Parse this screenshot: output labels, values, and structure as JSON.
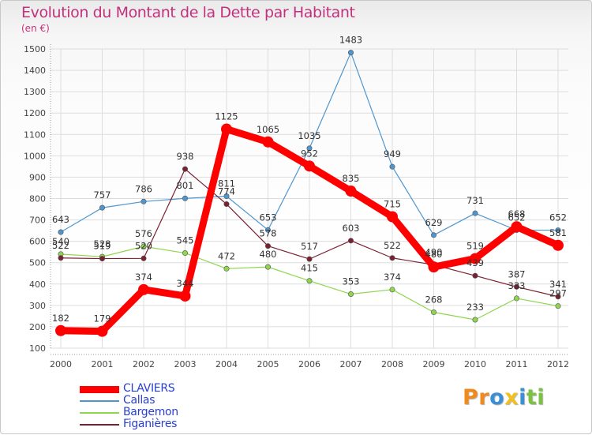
{
  "title": "Evolution du Montant de la Dette par Habitant",
  "unit": "(en €)",
  "chart_data": {
    "type": "line",
    "title": "Evolution du Montant de la Dette par Habitant",
    "ylabel": "(en €)",
    "xlabel": "",
    "x": [
      "2000",
      "2001",
      "2002",
      "2003",
      "2004",
      "2005",
      "2006",
      "2007",
      "2008",
      "2009",
      "2010",
      "2011",
      "2012"
    ],
    "y_ticks": [
      "100",
      "200",
      "300",
      "400",
      "500",
      "600",
      "700",
      "800",
      "900",
      "1000",
      "1100",
      "1200",
      "1300",
      "1400",
      "1500"
    ],
    "ylim": [
      100,
      1500
    ],
    "grid": true,
    "legend_position": "bottom-left",
    "series": [
      {
        "name": "CLAVIERS",
        "color": "#ff0000",
        "values": [
          182,
          179,
          374,
          344,
          1125,
          1065,
          952,
          835,
          715,
          480,
          519,
          668,
          581
        ]
      },
      {
        "name": "Callas",
        "color": "#4f96cf",
        "values": [
          643,
          757,
          786,
          801,
          811,
          653,
          1035,
          1483,
          949,
          629,
          731,
          652,
          652
        ]
      },
      {
        "name": "Bargemon",
        "color": "#8fd64f",
        "values": [
          540,
          528,
          576,
          545,
          472,
          480,
          415,
          353,
          374,
          268,
          233,
          333,
          297
        ]
      },
      {
        "name": "Figanières",
        "color": "#7a2030",
        "values": [
          522,
          519,
          520,
          938,
          774,
          578,
          517,
          603,
          522,
          490,
          439,
          387,
          341
        ]
      }
    ]
  },
  "legend": [
    {
      "label": "CLAVIERS",
      "color": "#ff0000",
      "width": 9
    },
    {
      "label": "Callas",
      "color": "#4f96cf",
      "width": 1.5
    },
    {
      "label": "Bargemon",
      "color": "#8fd64f",
      "width": 1.5
    },
    {
      "label": "Figanières",
      "color": "#7a2030",
      "width": 1.5
    }
  ],
  "logo": {
    "letters": [
      "P",
      "r",
      "o",
      "x",
      "i",
      "t",
      "i"
    ],
    "colors": [
      "#f08a1c",
      "#f08a1c",
      "#3b8fd4",
      "#f0c020",
      "#3b8fd4",
      "#7cc242",
      "#7cc242"
    ]
  }
}
